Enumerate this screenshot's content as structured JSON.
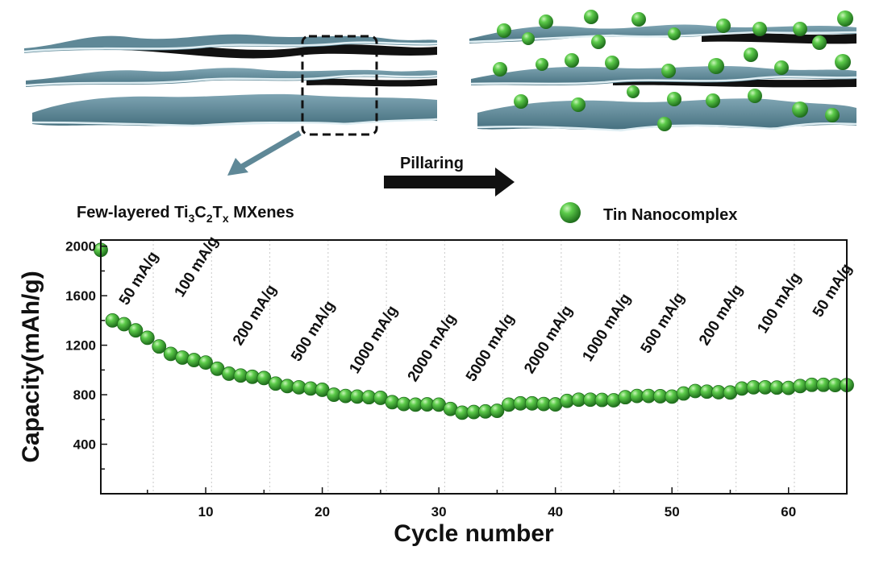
{
  "schematic": {
    "left_caption_main": "Few-layered Ti",
    "left_caption_sub1": "3",
    "left_caption_c": "C",
    "left_caption_sub2": "2",
    "left_caption_t": "T",
    "left_caption_sub3": "x",
    "left_caption_end": " MXenes",
    "arrow_label": "Pillaring",
    "legend_label": "Tin Nanocomplex",
    "colors": {
      "sheet": "#5f8897",
      "sheet_dark": "#111111",
      "sphere": "#3aa63a",
      "arrow": "#5f8897"
    }
  },
  "chart_data": {
    "type": "scatter",
    "xlabel": "Cycle number",
    "ylabel": "Capacity(mAh/g)",
    "xlim": [
      1,
      65
    ],
    "ylim": [
      0,
      2050
    ],
    "xticks": [
      10,
      20,
      30,
      40,
      50,
      60
    ],
    "yticks": [
      400,
      800,
      1200,
      1600,
      2000
    ],
    "marker_color": "#3aa63a",
    "x": [
      1,
      2,
      3,
      4,
      5,
      6,
      7,
      8,
      9,
      10,
      11,
      12,
      13,
      14,
      15,
      16,
      17,
      18,
      19,
      20,
      21,
      22,
      23,
      24,
      25,
      26,
      27,
      28,
      29,
      30,
      31,
      32,
      33,
      34,
      35,
      36,
      37,
      38,
      39,
      40,
      41,
      42,
      43,
      44,
      45,
      46,
      47,
      48,
      49,
      50,
      51,
      52,
      53,
      54,
      55,
      56,
      57,
      58,
      59,
      60,
      61,
      62,
      63,
      64,
      65
    ],
    "y": [
      1970,
      1400,
      1370,
      1320,
      1260,
      1190,
      1130,
      1100,
      1080,
      1060,
      1010,
      970,
      955,
      945,
      935,
      890,
      870,
      860,
      850,
      840,
      800,
      790,
      785,
      780,
      775,
      740,
      725,
      720,
      722,
      720,
      685,
      655,
      660,
      665,
      670,
      720,
      730,
      730,
      725,
      722,
      750,
      760,
      760,
      758,
      755,
      780,
      790,
      790,
      788,
      785,
      810,
      830,
      825,
      820,
      818,
      850,
      860,
      860,
      858,
      855,
      870,
      880,
      880,
      878,
      878
    ],
    "rate_labels": [
      "50 mA/g",
      "100 mA/g",
      "200 mA/g",
      "500 mA/g",
      "1000 mA/g",
      "2000 mA/g",
      "5000 mA/g",
      "2000 mA/g",
      "1000 mA/g",
      "500 mA/g",
      "200 mA/g",
      "100 mA/g",
      "50 mA/g"
    ],
    "separators": [
      5,
      10,
      15,
      20,
      25,
      30,
      35,
      40,
      45,
      50,
      55,
      60
    ],
    "grid": false,
    "legend": "none"
  }
}
